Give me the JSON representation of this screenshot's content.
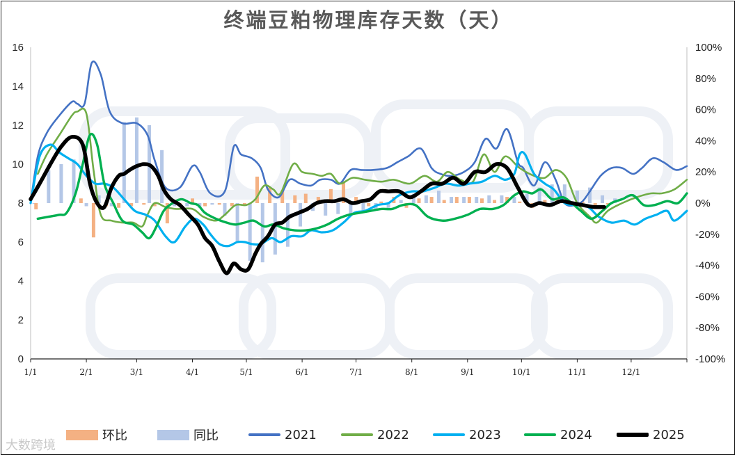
{
  "title": "终端豆粕物理库存天数（天）",
  "watermark": "大数跨境",
  "colors": {
    "2021": "#4472C4",
    "2022": "#70AD47",
    "2023": "#00B0F0",
    "2024": "#00B050",
    "2025": "#000000",
    "huanbi": "#F4B183",
    "tongbi": "#B4C7E7"
  },
  "chart_data": {
    "type": "line",
    "title": "终端豆粕物理库存天数（天）",
    "x_ticks": [
      "1/1",
      "2/1",
      "3/1",
      "4/1",
      "5/1",
      "6/1",
      "7/1",
      "8/1",
      "9/1",
      "10/1",
      "11/1",
      "12/1"
    ],
    "x_tick_days": [
      1,
      32,
      60,
      91,
      121,
      152,
      182,
      213,
      244,
      274,
      305,
      335
    ],
    "y_left": {
      "range": [
        0,
        16
      ],
      "ticks": [
        "0",
        "2",
        "4",
        "6",
        "8",
        "10",
        "12",
        "14",
        "16"
      ]
    },
    "y_right": {
      "range": [
        -100,
        100
      ],
      "ticks": [
        "-100%",
        "-80%",
        "-60%",
        "-40%",
        "-20%",
        "0%",
        "20%",
        "40%",
        "60%",
        "80%",
        "100%"
      ]
    },
    "grid": false,
    "legend": [
      "环比",
      "同比",
      "2021",
      "2022",
      "2023",
      "2024",
      "2025"
    ],
    "series": [
      {
        "name": "2021",
        "axis": "left",
        "x": [
          1,
          5,
          10,
          17,
          24,
          27,
          31,
          35,
          40,
          45,
          52,
          60,
          66,
          70,
          76,
          84,
          91,
          95,
          101,
          109,
          114,
          118,
          124,
          129,
          133,
          139,
          145,
          151,
          157,
          162,
          168,
          173,
          179,
          185,
          191,
          199,
          205,
          211,
          218,
          224,
          229,
          235,
          242,
          248,
          254,
          260,
          266,
          272,
          275,
          281,
          287,
          293,
          298,
          304,
          308,
          312,
          318,
          324,
          330,
          336,
          341,
          347,
          353,
          360,
          366
        ],
        "y": [
          8.0,
          10.4,
          11.6,
          12.5,
          13.2,
          13.1,
          13.1,
          15.2,
          14.6,
          12.7,
          12.1,
          12.1,
          11.5,
          10.2,
          8.8,
          8.8,
          9.9,
          9.6,
          8.5,
          8.6,
          10.9,
          10.5,
          10.3,
          9.8,
          8.7,
          8.3,
          9.2,
          9.0,
          8.9,
          9.2,
          9.2,
          9.0,
          9.7,
          9.7,
          9.7,
          9.8,
          10.1,
          10.4,
          10.8,
          9.8,
          9.5,
          9.4,
          9.6,
          10.1,
          11.3,
          10.8,
          11.8,
          10.1,
          9.8,
          8.9,
          10.1,
          9.2,
          8.0,
          7.9,
          8.1,
          8.6,
          9.4,
          9.8,
          9.8,
          9.5,
          9.8,
          10.3,
          10.1,
          9.7,
          9.9
        ]
      },
      {
        "name": "2022",
        "axis": "left",
        "x": [
          5,
          10,
          17,
          24,
          27,
          32,
          36,
          40,
          46,
          52,
          58,
          63,
          66,
          70,
          76,
          82,
          91,
          97,
          104,
          109,
          115,
          121,
          126,
          131,
          136,
          140,
          147,
          152,
          158,
          163,
          168,
          173,
          180,
          187,
          196,
          203,
          212,
          220,
          227,
          233,
          240,
          247,
          253,
          259,
          265,
          273,
          281,
          287,
          293,
          299,
          305,
          312,
          316,
          322,
          330,
          338,
          346,
          352,
          359,
          366
        ],
        "y": [
          9.5,
          10.5,
          11.5,
          12.5,
          12.7,
          12.6,
          9.7,
          7.4,
          7.1,
          7.0,
          7.0,
          6.8,
          7.4,
          8.0,
          7.8,
          7.7,
          7.7,
          7.3,
          7.1,
          7.4,
          7.9,
          7.9,
          8.2,
          8.9,
          8.7,
          8.5,
          10.0,
          9.6,
          9.5,
          9.4,
          9.5,
          9.0,
          9.3,
          9.2,
          9.1,
          9.2,
          9.0,
          9.4,
          9.1,
          9.6,
          9.2,
          9.1,
          10.5,
          9.6,
          10.4,
          9.8,
          9.4,
          9.3,
          9.7,
          9.3,
          8.0,
          7.3,
          7.0,
          7.6,
          8.0,
          8.3,
          8.5,
          8.5,
          8.7,
          9.2
        ]
      },
      {
        "name": "2023",
        "axis": "left",
        "x": [
          1,
          6,
          12,
          17,
          22,
          27,
          32,
          37,
          42,
          47,
          53,
          59,
          65,
          70,
          76,
          81,
          87,
          92,
          97,
          101,
          106,
          111,
          116,
          120,
          124,
          129,
          135,
          140,
          146,
          152,
          157,
          163,
          169,
          175,
          181,
          187,
          194,
          200,
          206,
          213,
          219,
          226,
          232,
          239,
          245,
          252,
          259,
          265,
          270,
          273,
          276,
          281,
          287,
          292,
          298,
          304,
          311,
          317,
          324,
          331,
          337,
          343,
          349,
          355,
          359,
          366
        ],
        "y": [
          8.0,
          10.4,
          11.0,
          10.6,
          10.3,
          10.0,
          9.4,
          9.0,
          9.0,
          8.8,
          8.2,
          7.6,
          7.4,
          7.1,
          6.3,
          6.0,
          6.8,
          7.2,
          6.9,
          6.4,
          5.9,
          5.8,
          6.0,
          6.0,
          5.9,
          5.9,
          6.2,
          6.0,
          6.3,
          6.3,
          6.6,
          6.5,
          6.6,
          7.0,
          7.5,
          7.6,
          7.9,
          8.0,
          8.4,
          8.6,
          8.6,
          8.8,
          9.0,
          8.9,
          9.0,
          9.1,
          9.4,
          9.2,
          9.5,
          10.5,
          10.5,
          9.5,
          9.0,
          8.7,
          8.0,
          7.9,
          7.8,
          7.3,
          7.0,
          7.1,
          6.9,
          7.2,
          7.4,
          7.6,
          7.1,
          7.6
        ]
      },
      {
        "name": "2024",
        "axis": "left",
        "x": [
          5,
          11,
          17,
          21,
          26,
          30,
          34,
          38,
          42,
          47,
          52,
          58,
          63,
          67,
          71,
          75,
          80,
          85,
          90,
          94,
          98,
          104,
          110,
          115,
          120,
          125,
          131,
          136,
          142,
          148,
          154,
          160,
          166,
          172,
          178,
          184,
          190,
          196,
          202,
          208,
          215,
          222,
          230,
          237,
          244,
          251,
          258,
          264,
          270,
          275,
          280,
          285,
          291,
          297,
          302,
          307,
          313,
          319,
          324,
          330,
          336,
          342,
          348,
          355,
          361,
          366
        ],
        "y": [
          7.2,
          7.3,
          7.4,
          7.5,
          8.5,
          10.0,
          11.5,
          11.0,
          9.0,
          8.0,
          7.1,
          6.9,
          6.5,
          6.2,
          6.8,
          7.6,
          8.0,
          8.2,
          8.0,
          7.9,
          7.5,
          7.2,
          7.0,
          6.9,
          7.0,
          7.1,
          6.8,
          6.9,
          6.7,
          6.6,
          6.6,
          6.7,
          6.9,
          7.2,
          7.4,
          7.5,
          7.6,
          7.7,
          7.7,
          7.9,
          7.9,
          7.3,
          7.1,
          7.2,
          7.4,
          7.7,
          7.7,
          7.9,
          8.4,
          8.6,
          8.5,
          8.7,
          8.2,
          8.3,
          8.0,
          7.6,
          7.2,
          7.6,
          8.0,
          8.2,
          8.4,
          7.9,
          7.9,
          8.1,
          8.0,
          8.5
        ]
      },
      {
        "name": "2025",
        "axis": "left",
        "x": [
          1,
          6,
          12,
          18,
          24,
          30,
          34,
          38,
          42,
          46,
          50,
          53,
          56,
          60,
          64,
          68,
          72,
          75,
          79,
          84,
          89,
          94,
          98,
          102,
          106,
          110,
          114,
          118,
          122,
          126,
          129,
          133,
          137,
          141,
          145,
          150,
          155,
          160,
          165,
          170,
          175,
          180,
          185,
          190,
          195,
          200,
          206,
          212,
          218,
          224,
          230,
          236,
          242,
          248,
          254,
          260,
          266,
          272,
          278,
          284,
          290,
          296,
          302,
          308,
          314,
          320
        ],
        "y": [
          8.2,
          9.0,
          10.0,
          10.9,
          11.4,
          11.0,
          9.0,
          8.0,
          7.8,
          8.8,
          9.4,
          9.5,
          9.7,
          9.9,
          10.0,
          9.9,
          9.4,
          8.7,
          8.2,
          7.9,
          7.4,
          6.9,
          6.2,
          5.8,
          5.0,
          4.4,
          4.9,
          4.6,
          4.6,
          5.4,
          5.9,
          6.3,
          6.9,
          7.0,
          7.3,
          7.5,
          7.7,
          8.0,
          8.1,
          8.1,
          8.2,
          8.0,
          8.1,
          8.2,
          8.6,
          8.6,
          8.6,
          8.3,
          8.6,
          9.0,
          9.0,
          9.3,
          9.0,
          9.6,
          9.6,
          10.0,
          9.8,
          8.8,
          7.9,
          8.0,
          7.9,
          8.1,
          8.0,
          7.9,
          7.8,
          7.8
        ]
      }
    ],
    "bars": {
      "tongbi": {
        "name": "同比",
        "axis": "right",
        "unit": "%",
        "x": [
          3,
          11,
          18,
          25,
          32,
          39,
          46,
          53,
          60,
          67,
          74,
          81,
          88,
          95,
          102,
          109,
          116,
          123,
          130,
          137,
          144,
          151,
          158,
          165,
          172,
          179,
          186,
          193,
          200,
          207,
          214,
          221,
          228,
          235,
          242,
          249,
          256,
          263,
          270,
          277,
          284,
          291,
          298,
          305,
          312,
          319,
          326
        ],
        "values": [
          0,
          21,
          25,
          28,
          -2,
          5,
          -2,
          52,
          55,
          50,
          34,
          -2,
          -2,
          -3,
          -1,
          -8,
          -25,
          -37,
          -38,
          -33,
          -28,
          -15,
          -5,
          -8,
          -7,
          -7,
          -5,
          -4,
          -3,
          2,
          6,
          5,
          8,
          4,
          4,
          4,
          5,
          5,
          4,
          6,
          10,
          12,
          12,
          8,
          10,
          5,
          3
        ]
      },
      "huanbi": {
        "name": "环比",
        "axis": "right",
        "unit": "%",
        "x": [
          4,
          29,
          36,
          43,
          50,
          57,
          64,
          70,
          77,
          84,
          91,
          98,
          106,
          113,
          120,
          127,
          134,
          141,
          148,
          154,
          161,
          168,
          175,
          182,
          189,
          196,
          203,
          210,
          217,
          224,
          231,
          238,
          245,
          252,
          259,
          266,
          273,
          280,
          287,
          294,
          301,
          308,
          315,
          322
        ],
        "values": [
          -4,
          3,
          -22,
          -2,
          -3,
          -2,
          -1,
          -2,
          -13,
          -2,
          3,
          -2,
          -1,
          -2,
          -1,
          17,
          10,
          8,
          5,
          6,
          4,
          9,
          14,
          4,
          -2,
          1,
          4,
          -3,
          3,
          4,
          2,
          4,
          4,
          3,
          2,
          4,
          1,
          -3,
          2,
          3,
          -1,
          1,
          -2,
          -1
        ]
      }
    }
  }
}
